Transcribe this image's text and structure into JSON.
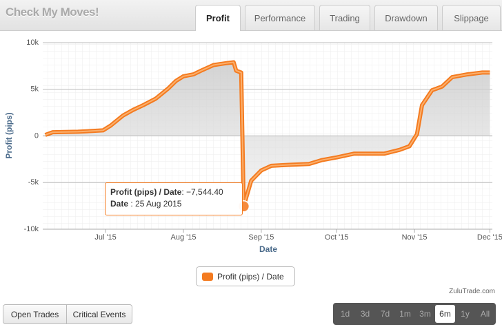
{
  "header": {
    "title": "Check My Moves!",
    "tabs": [
      "Profit",
      "Performance",
      "Trading",
      "Drawdown",
      "Slippage"
    ],
    "active_tab": 0
  },
  "chart_data": {
    "type": "line",
    "x_label": "Date",
    "y_label": "Profit (pips)",
    "x": [
      "2015-06-07",
      "2015-06-10",
      "2015-06-20",
      "2015-06-30",
      "2015-07-03",
      "2015-07-08",
      "2015-07-12",
      "2015-07-16",
      "2015-07-21",
      "2015-07-26",
      "2015-07-29",
      "2015-08-01",
      "2015-08-05",
      "2015-08-08",
      "2015-08-13",
      "2015-08-18",
      "2015-08-21",
      "2015-08-22",
      "2015-08-24",
      "2015-08-25",
      "2015-08-28",
      "2015-09-01",
      "2015-09-05",
      "2015-09-12",
      "2015-09-20",
      "2015-09-25",
      "2015-10-01",
      "2015-10-08",
      "2015-10-20",
      "2015-10-26",
      "2015-10-30",
      "2015-11-02",
      "2015-11-04",
      "2015-11-08",
      "2015-11-12",
      "2015-11-16",
      "2015-11-22",
      "2015-11-28",
      "2015-12-01"
    ],
    "series": [
      {
        "name": "Profit (pips) / Date",
        "color": "#f47b20",
        "values": [
          100,
          400,
          450,
          600,
          1100,
          2200,
          2800,
          3300,
          4000,
          5100,
          5900,
          6400,
          6600,
          7000,
          7600,
          7800,
          7900,
          7000,
          6800,
          -7544.4,
          -4800,
          -3700,
          -3200,
          -3100,
          -3000,
          -2600,
          -2300,
          -1900,
          -1900,
          -1500,
          -1100,
          200,
          3300,
          4900,
          5300,
          6300,
          6600,
          6800,
          6800
        ]
      }
    ],
    "xlim": [
      "2015-06-06",
      "2015-12-02"
    ],
    "xticks": [
      {
        "value": "2015-07-01",
        "label": "Jul '15"
      },
      {
        "value": "2015-08-01",
        "label": "Aug '15"
      },
      {
        "value": "2015-09-01",
        "label": "Sep '15"
      },
      {
        "value": "2015-10-01",
        "label": "Oct '15"
      },
      {
        "value": "2015-11-01",
        "label": "Nov '15"
      },
      {
        "value": "2015-12-01",
        "label": "Dec '15"
      }
    ],
    "ylim": [
      -10000,
      10000
    ],
    "yticks": [
      {
        "value": -10000,
        "label": "-10k"
      },
      {
        "value": -5000,
        "label": "-5k"
      },
      0,
      {
        "value": 5000,
        "label": "5k"
      },
      {
        "value": 10000,
        "label": "10k"
      }
    ],
    "grid": true,
    "legend": "bottom",
    "tooltip": {
      "point": 19,
      "rows": [
        {
          "label": "Profit (pips) / Date",
          "text": ": −7,544.40"
        },
        {
          "label": "Date",
          "text": " : 25 Aug 2015"
        }
      ]
    }
  },
  "footer": {
    "credit": "ZuluTrade.com",
    "buttons": [
      "Open Trades",
      "Critical Events"
    ],
    "ranges": [
      "1d",
      "3d",
      "7d",
      "1m",
      "3m",
      "6m",
      "1y",
      "All"
    ],
    "active_range": 5
  }
}
